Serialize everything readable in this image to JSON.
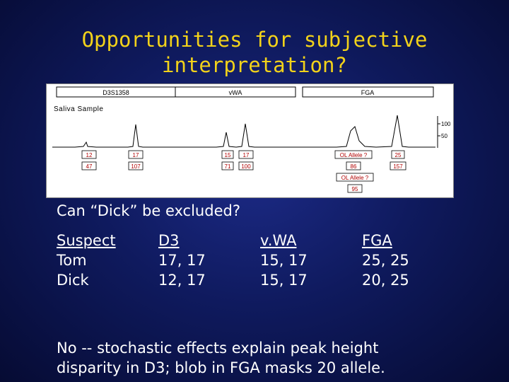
{
  "title_line1": "Opportunities for subjective",
  "title_line2": "interpretation?",
  "electropherogram": {
    "loci": [
      "D3S1358",
      "vWA",
      "FGA"
    ],
    "sample_label": "Saliva Sample",
    "y_ticks": [
      "100",
      "50"
    ],
    "peak_labels": [
      {
        "allele": "12",
        "height": "47"
      },
      {
        "allele": "17",
        "height": "107"
      },
      {
        "allele": "15",
        "height": "71"
      },
      {
        "allele": "17",
        "height": "100"
      },
      {
        "allele": "OL Allele ?",
        "height": "86"
      },
      {
        "allele": "25",
        "height": "157"
      },
      {
        "allele": "OL Allele ?",
        "height": "95"
      }
    ]
  },
  "question": "Can “Dick” be excluded?",
  "table": {
    "col1": {
      "header": "Suspect",
      "rows": [
        "Tom",
        "Dick"
      ]
    },
    "col2": {
      "header": "D3",
      "rows": [
        "17, 17",
        "12, 17"
      ]
    },
    "col3": {
      "header": "v.WA",
      "rows": [
        "15, 17",
        "15, 17"
      ]
    },
    "col4": {
      "header": "FGA",
      "rows": [
        "25, 25",
        "20, 25"
      ]
    }
  },
  "footer_line1": "No -- stochastic effects explain peak height",
  "footer_line2": "disparity in D3; blob in FGA masks 20 allele."
}
